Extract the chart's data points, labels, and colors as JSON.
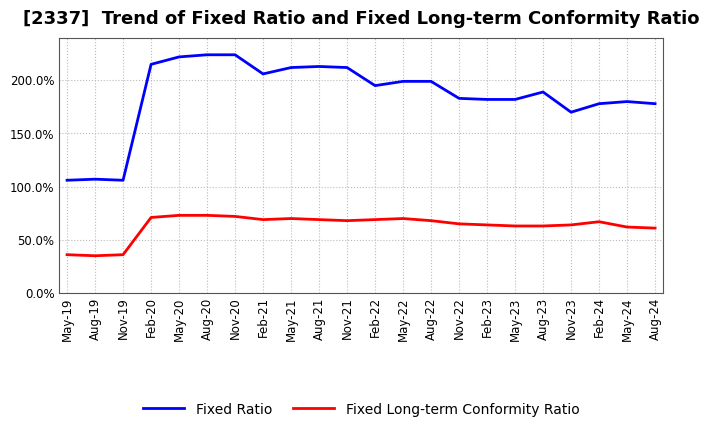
{
  "title": "[2337]  Trend of Fixed Ratio and Fixed Long-term Conformity Ratio",
  "fixed_ratio": {
    "dates": [
      "May-19",
      "Aug-19",
      "Nov-19",
      "Feb-20",
      "May-20",
      "Aug-20",
      "Nov-20",
      "Feb-21",
      "May-21",
      "Aug-21",
      "Nov-21",
      "Feb-22",
      "May-22",
      "Aug-22",
      "Nov-22",
      "Feb-23",
      "May-23",
      "Aug-23",
      "Nov-23",
      "Feb-24",
      "May-24",
      "Aug-24"
    ],
    "values": [
      1.06,
      1.07,
      1.06,
      2.15,
      2.22,
      2.24,
      2.24,
      2.06,
      2.12,
      2.13,
      2.12,
      1.95,
      1.99,
      1.99,
      1.83,
      1.82,
      1.82,
      1.89,
      1.7,
      1.78,
      1.8,
      1.78
    ],
    "color": "#0000FF",
    "label": "Fixed Ratio",
    "linewidth": 2.0
  },
  "fixed_lt_ratio": {
    "dates": [
      "May-19",
      "Aug-19",
      "Nov-19",
      "Feb-20",
      "May-20",
      "Aug-20",
      "Nov-20",
      "Feb-21",
      "May-21",
      "Aug-21",
      "Nov-21",
      "Feb-22",
      "May-22",
      "Aug-22",
      "Nov-22",
      "Feb-23",
      "May-23",
      "Aug-23",
      "Nov-23",
      "Feb-24",
      "May-24",
      "Aug-24"
    ],
    "values": [
      0.36,
      0.35,
      0.36,
      0.71,
      0.73,
      0.73,
      0.72,
      0.69,
      0.7,
      0.69,
      0.68,
      0.69,
      0.7,
      0.68,
      0.65,
      0.64,
      0.63,
      0.63,
      0.64,
      0.67,
      0.62,
      0.61
    ],
    "color": "#FF0000",
    "label": "Fixed Long-term Conformity Ratio",
    "linewidth": 2.0
  },
  "ylim": [
    0.0,
    2.4
  ],
  "yticks": [
    0.0,
    0.5,
    1.0,
    1.5,
    2.0
  ],
  "ytick_labels": [
    "0.0%",
    "50.0%",
    "100.0%",
    "150.0%",
    "200.0%"
  ],
  "background_color": "#FFFFFF",
  "plot_bg_color": "#FFFFFF",
  "grid_color": "#BBBBBB",
  "title_fontsize": 13,
  "tick_fontsize": 8.5,
  "legend_fontsize": 10,
  "spine_color": "#555555"
}
